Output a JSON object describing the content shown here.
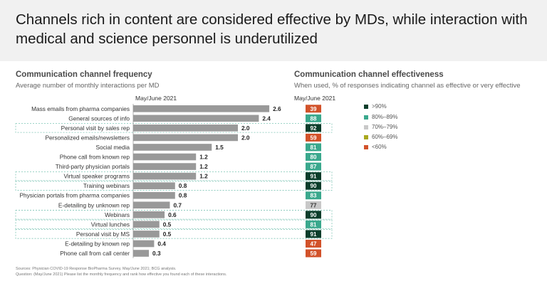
{
  "headline": "Channels rich in content are considered effective by MDs, while interaction with medical and science personnel is underutilized",
  "left_panel": {
    "title": "Communication channel frequency",
    "subtitle": "Average number of monthly interactions per MD",
    "period": "May/June 2021"
  },
  "right_panel": {
    "title": "Communication channel effectiveness",
    "subtitle": "When used, % of responses indicating channel as effective or very effective",
    "period": "May/June 2021"
  },
  "legend": [
    {
      "label": ">90%",
      "color": "#0b3d2b"
    },
    {
      "label": "80%–89%",
      "color": "#3aa88d"
    },
    {
      "label": "70%–79%",
      "color": "#c8c8c8"
    },
    {
      "label": "60%–69%",
      "color": "#a9a81e"
    },
    {
      "label": "<60%",
      "color": "#d2522a"
    }
  ],
  "chart_data": [
    {
      "type": "bar",
      "orientation": "horizontal",
      "title": "Communication channel frequency",
      "subtitle": "Average number of monthly interactions per MD",
      "categories": [
        "Mass emails from pharma companies",
        "General sources of info",
        "Personal visit by sales rep",
        "Personalized emails/newsletters",
        "Social media",
        "Phone call from known rep",
        "Third-party physician portals",
        "Virtual speaker programs",
        "Training webinars",
        "Physician portals from pharma companies",
        "E-detailing by unknown rep",
        "Webinars",
        "Virtual lunches",
        "Personal visit by MS",
        "E-detailing by known rep",
        "Phone call from call center"
      ],
      "values": [
        2.6,
        2.4,
        2.0,
        2.0,
        1.5,
        1.2,
        1.2,
        1.2,
        0.8,
        0.8,
        0.7,
        0.6,
        0.5,
        0.5,
        0.4,
        0.3
      ],
      "value_labels": [
        "2.6",
        "2.4",
        "2.0",
        "2.0",
        "1.5",
        "1.2",
        "1.2",
        "1.2",
        "0.8",
        "0.8",
        "0.7",
        "0.6",
        "0.5",
        "0.5",
        "0.4",
        "0.3"
      ],
      "highlighted": [
        false,
        false,
        true,
        false,
        false,
        false,
        false,
        true,
        true,
        false,
        false,
        true,
        true,
        true,
        false,
        false
      ],
      "bar_color": "#999999",
      "xlim": [
        0,
        2.6
      ]
    },
    {
      "type": "table",
      "title": "Communication channel effectiveness",
      "subtitle": "When used, % of responses indicating channel as effective or very effective",
      "values": [
        39,
        88,
        92,
        59,
        81,
        80,
        87,
        91,
        90,
        83,
        77,
        90,
        81,
        91,
        47,
        59
      ],
      "value_labels": [
        "39",
        "88",
        "92",
        "59",
        "81",
        "80",
        "87",
        "91",
        "90",
        "83",
        "77",
        "90",
        "81",
        "91",
        "47",
        "59"
      ]
    }
  ],
  "footnotes": [
    "Sources: Physician COVID-19 Response BioPharma Survey, May/June 2021; BCG analysis.",
    "Question: (May/June 2021) Please list the monthly frequency and rank how effective you found each of these interactions."
  ]
}
